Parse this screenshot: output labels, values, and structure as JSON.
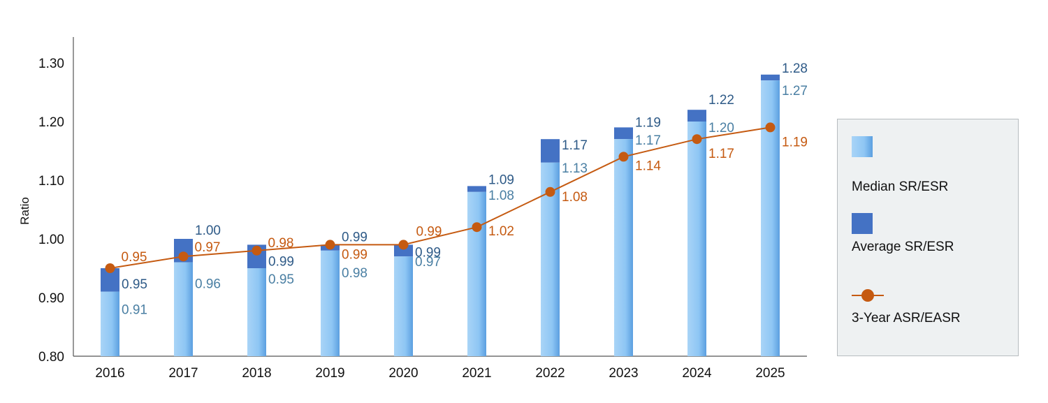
{
  "chart_data": {
    "type": "bar",
    "categories": [
      "2016",
      "2017",
      "2018",
      "2019",
      "2020",
      "2021",
      "2022",
      "2023",
      "2024",
      "2025"
    ],
    "series": [
      {
        "name": "Median SR/ESR",
        "kind": "bar",
        "values": [
          0.91,
          0.96,
          0.95,
          0.98,
          0.97,
          1.08,
          1.13,
          1.17,
          1.2,
          1.27
        ]
      },
      {
        "name": "Average SR/ESR",
        "kind": "bar",
        "values": [
          0.95,
          1.0,
          0.99,
          0.99,
          0.99,
          1.09,
          1.17,
          1.19,
          1.22,
          1.28
        ]
      },
      {
        "name": "3-Year ASR/EASR",
        "kind": "line",
        "values": [
          0.95,
          0.97,
          0.98,
          0.99,
          0.99,
          1.02,
          1.08,
          1.14,
          1.17,
          1.19
        ]
      }
    ],
    "ylabel": "Ratio",
    "xlabel": "",
    "ylim": [
      0.8,
      1.3
    ],
    "yticks": [
      "0.80",
      "0.90",
      "1.00",
      "1.10",
      "1.20",
      "1.30"
    ],
    "grid": false,
    "legend_position": "right",
    "colors": {
      "median": "#8ec6f4",
      "average": "#4472c4",
      "line": "#c55a11",
      "median_label": "#4a7fa3",
      "average_label": "#2e5a87",
      "line_label": "#c55a11"
    }
  }
}
